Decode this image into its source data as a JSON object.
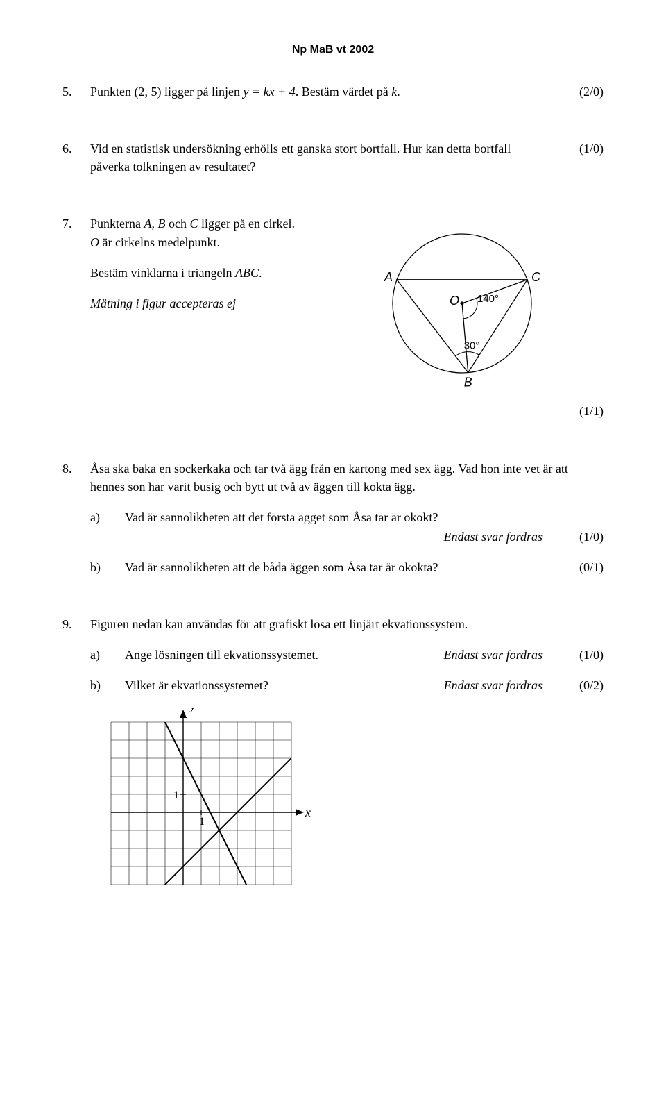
{
  "header": "Np MaB vt 2002",
  "q5": {
    "num": "5.",
    "t1": "Punkten (2, 5) ligger på linjen ",
    "eq": "y = kx + 4",
    "t2": ". Bestäm värdet på ",
    "kvar": "k",
    "t3": ".",
    "pts": "(2/0)"
  },
  "q6": {
    "num": "6.",
    "text": "Vid en statistisk undersökning erhölls ett ganska stort bortfall. Hur kan detta bortfall påverka tolkningen av resultatet?",
    "pts": "(1/0)"
  },
  "q7": {
    "num": "7.",
    "l1a": "Punkterna ",
    "ABC": "A, B",
    "l1b": " och ",
    "Cv": "C",
    "l1c": " ligger på en cirkel.",
    "l2a": "O",
    "l2b": " är cirkelns medelpunkt.",
    "l3a": "Bestäm vinklarna i triangeln ",
    "l3b": "ABC",
    "l3c": ".",
    "l4": "Mätning i figur accepteras ej",
    "pts": "(1/1)",
    "fig": {
      "r": 100,
      "A": "A",
      "B": "B",
      "C": "C",
      "O": "O",
      "ang1": "140°",
      "ang2": "30°",
      "stroke": "#000000",
      "fill": "#ffffff",
      "font": "italic 18px Arial"
    }
  },
  "q8": {
    "num": "8.",
    "intro": "Åsa ska baka en sockerkaka och tar två ägg från en kartong med sex ägg. Vad hon inte vet är att hennes son har varit busig och bytt ut två av äggen till kokta ägg.",
    "a": {
      "label": "a)",
      "text": "Vad är sannolikheten att det första ägget som Åsa tar är okokt?",
      "note": "Endast svar fordras",
      "pts": "(1/0)"
    },
    "b": {
      "label": "b)",
      "text": "Vad är sannolikheten att de båda äggen som Åsa tar är okokta?",
      "pts": "(0/1)"
    }
  },
  "q9": {
    "num": "9.",
    "intro": "Figuren nedan kan användas för att grafiskt lösa ett linjärt ekvationssystem.",
    "a": {
      "label": "a)",
      "text": "Ange lösningen till ekvationssystemet.",
      "note": "Endast svar fordras",
      "pts": "(1/0)"
    },
    "b": {
      "label": "b)",
      "text": "Vilket är ekvationssystemet?",
      "note": "Endast svar fordras",
      "pts": "(0/2)"
    },
    "fig": {
      "grid": {
        "xmin": -4,
        "xmax": 6,
        "ymin": -4,
        "ymax": 5,
        "step": 1,
        "cell": 26
      },
      "xlabel": "x",
      "ylabel": "y",
      "one": "1",
      "lineA": {
        "m": -2,
        "b": 3
      },
      "lineB": {
        "m": 1,
        "b": -3
      },
      "stroke_grid": "#000000",
      "stroke_grid_w": 0.6,
      "stroke_axis_w": 1.4,
      "stroke_line_w": 2.0,
      "font": "italic 18px Times New Roman"
    }
  }
}
